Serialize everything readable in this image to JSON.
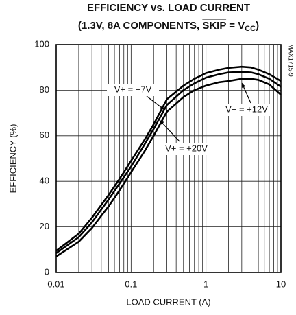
{
  "chart_data": {
    "type": "line",
    "title": "EFFICIENCY vs. LOAD CURRENT",
    "subtitle_parts": [
      "(1.3V, 8A COMPONENTS, ",
      "SKIP",
      " = V",
      "CC",
      ")"
    ],
    "side_note": "MAX1715-9",
    "xlabel": "LOAD CURRENT (A)",
    "ylabel": "EFFICIENCY (%)",
    "xlog": true,
    "xlim": [
      0.01,
      10
    ],
    "xticks": [
      0.01,
      0.1,
      1,
      10
    ],
    "xminorticks": [
      0.02,
      0.03,
      0.04,
      0.05,
      0.06,
      0.07,
      0.08,
      0.09,
      0.2,
      0.3,
      0.4,
      0.5,
      0.6,
      0.7,
      0.8,
      0.9,
      2,
      3,
      4,
      5,
      6,
      7,
      8,
      9
    ],
    "ylim": [
      0,
      100
    ],
    "yticks": [
      0,
      20,
      40,
      60,
      80,
      100
    ],
    "grid": true,
    "x": [
      0.01,
      0.02,
      0.03,
      0.05,
      0.07,
      0.1,
      0.15,
      0.2,
      0.3,
      0.5,
      0.7,
      1,
      1.5,
      2,
      3,
      4,
      5,
      7,
      10
    ],
    "series": [
      {
        "name": "V+ = +7V",
        "color": "#000000",
        "values": [
          9.5,
          17,
          24,
          34,
          41,
          49,
          58,
          65,
          76,
          82,
          85,
          87.5,
          89,
          89.8,
          90.3,
          90,
          89,
          87,
          84
        ]
      },
      {
        "name": "V+ = +12V",
        "color": "#000000",
        "values": [
          8.5,
          15.5,
          22,
          32,
          39,
          46.5,
          56,
          63,
          73.5,
          80,
          83,
          85.5,
          87,
          87.8,
          88,
          87.8,
          87,
          85,
          81.5
        ]
      },
      {
        "name": "V+ = +20V",
        "color": "#000000",
        "values": [
          7,
          13.5,
          19.5,
          29,
          36,
          44,
          53,
          60,
          70.5,
          77,
          80,
          82,
          83.5,
          84,
          85,
          85,
          84.5,
          82.5,
          78
        ]
      }
    ]
  }
}
